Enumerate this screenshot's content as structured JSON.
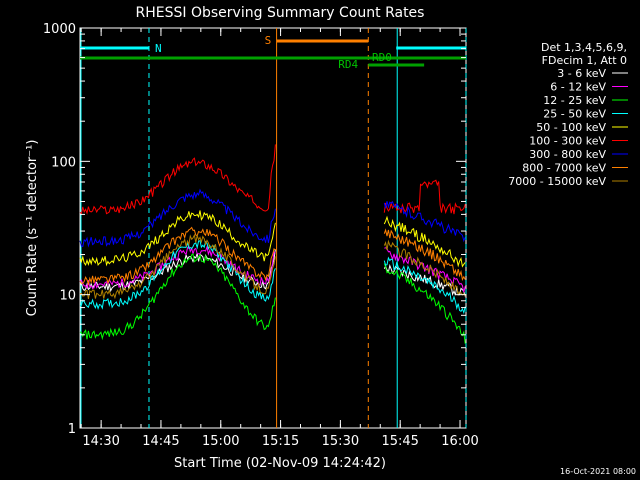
{
  "chart_data": {
    "type": "line",
    "title": "RHESSI Observing Summary Count Rates",
    "xlabel": "Start Time (02-Nov-09 14:24:42)",
    "ylabel": "Count Rate (s⁻¹ detector⁻¹)",
    "y_scale": "log",
    "ylim": [
      1,
      1000
    ],
    "xlim": [
      "14:24:42",
      "16:01:30"
    ],
    "x_ticks": [
      "14:30",
      "14:45",
      "15:00",
      "15:15",
      "15:30",
      "15:45",
      "16:00"
    ],
    "y_ticks": [
      "1",
      "10",
      "100",
      "1000"
    ],
    "legend_header": [
      "Det 1,3,4,5,6,9,",
      "FDecim 1, Att 0"
    ],
    "legend_placement": "right",
    "footer_date": "16-Oct-2021 08:00",
    "series": [
      {
        "name": "3 - 6 keV",
        "color": "#ffffff",
        "peak": 19,
        "base": 11.5,
        "post": 16,
        "end": 10
      },
      {
        "name": "6 - 12 keV",
        "color": "#ff00ff",
        "peak": 22,
        "base": 12,
        "post": 21,
        "end": 11
      },
      {
        "name": "12 - 25 keV",
        "color": "#00ff00",
        "peak": 19,
        "base": 5,
        "post": 16,
        "end": 4.5
      },
      {
        "name": "25 - 50 keV",
        "color": "#00ffff",
        "peak": 24,
        "base": 8.5,
        "post": 18,
        "end": 7.5
      },
      {
        "name": "50 - 100 keV",
        "color": "#ffff00",
        "peak": 40,
        "base": 18,
        "post": 36,
        "end": 16
      },
      {
        "name": "100 - 300 keV",
        "color": "#ff0000",
        "peak": 98,
        "base": 43,
        "post": 45,
        "end": 44
      },
      {
        "name": "300 - 800 keV",
        "color": "#0000ff",
        "peak": 57,
        "base": 25,
        "post": 48,
        "end": 26
      },
      {
        "name": "800 - 7000 keV",
        "color": "#ff8000",
        "peak": 30,
        "base": 13,
        "post": 30,
        "end": 13
      },
      {
        "name": "7000 - 15000 keV",
        "color": "#b08000",
        "peak": 26,
        "base": 10,
        "post": 24,
        "end": 9
      }
    ],
    "annotations": {
      "night_label": "N",
      "saa_label": "S",
      "rd0_label": "RD0",
      "rd4_label": "RD4"
    },
    "intervals": {
      "night": [
        [
          "14:24:42",
          "14:42:00"
        ],
        [
          "15:44:00",
          "16:01:30"
        ]
      ],
      "saa": [
        [
          "15:14:00",
          "15:37:00"
        ]
      ],
      "rd0": [
        [
          "14:24:42",
          "16:01:30"
        ]
      ],
      "rd4": [
        [
          "15:37:00",
          "15:51:00"
        ]
      ]
    }
  }
}
